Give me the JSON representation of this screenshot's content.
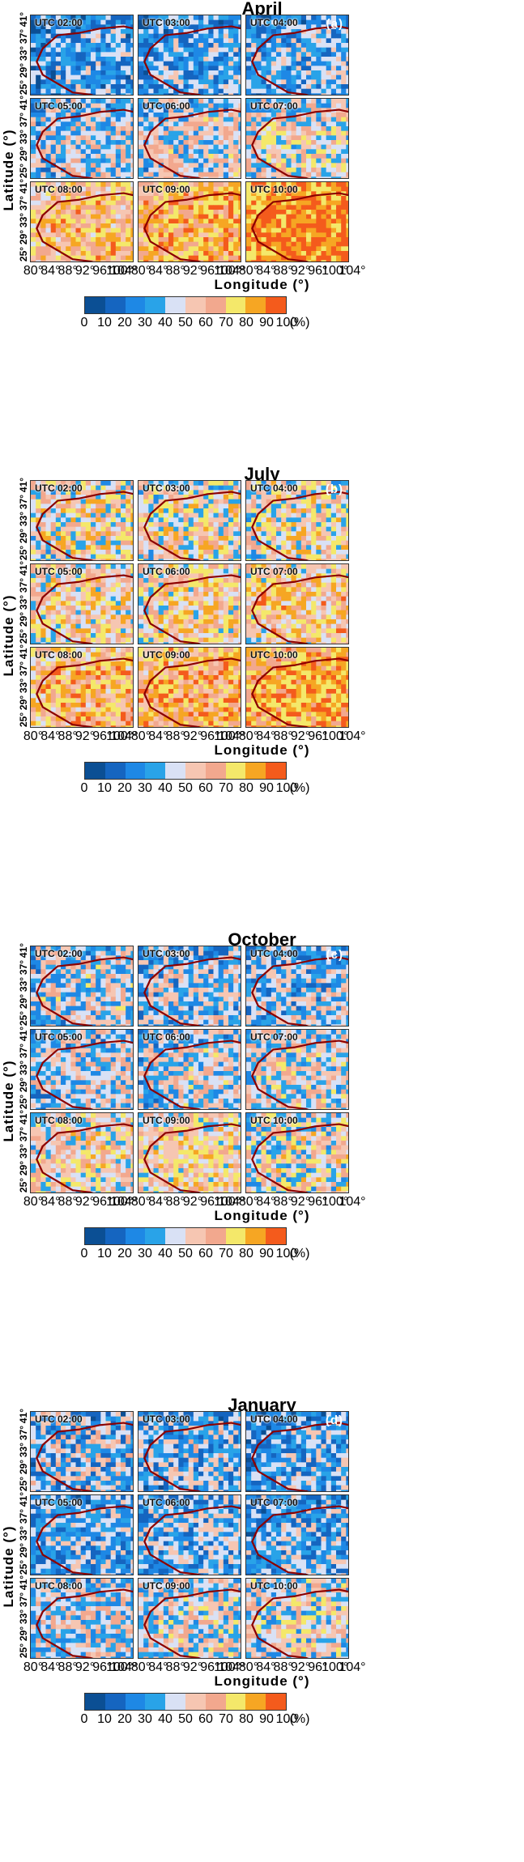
{
  "colors": [
    "#0b4f94",
    "#1565c0",
    "#1e88e5",
    "#29a3e8",
    "#d9e1f5",
    "#f6c6b2",
    "#f2a88e",
    "#f4e86a",
    "#f6a623",
    "#f45b1c"
  ],
  "colorbar": {
    "ticks": [
      "0",
      "10",
      "20",
      "30",
      "40",
      "50",
      "60",
      "70",
      "80",
      "90",
      "100"
    ],
    "unit": "(%)"
  },
  "axes": {
    "ylabel": "Latitude (°)",
    "xlabel": "Longitude (°)",
    "yticks": [
      "41°",
      "37°",
      "33°",
      "29°",
      "25°"
    ],
    "xticks_left": [
      "80°",
      "84°",
      "88°",
      "92°",
      "96°",
      "100°"
    ],
    "xticks_mid": [
      "104°",
      "80°",
      "84°",
      "88°",
      "92°",
      "96°",
      "100°"
    ],
    "xticks_right": [
      "104°",
      "80°",
      "84°",
      "88°",
      "92°",
      "96°",
      "100°",
      "104°"
    ]
  },
  "chart_data": [
    {
      "type": "heatmap",
      "title": "April",
      "panel": "(a)",
      "xlabel": "Longitude (°)",
      "ylabel": "Latitude (°)",
      "xlim": [
        80,
        104
      ],
      "ylim": [
        25,
        41
      ],
      "panels": [
        {
          "label": "UTC 02:00",
          "mean": 25,
          "spread": 22
        },
        {
          "label": "UTC 03:00",
          "mean": 27,
          "spread": 22
        },
        {
          "label": "UTC 04:00",
          "mean": 30,
          "spread": 22
        },
        {
          "label": "UTC 05:00",
          "mean": 38,
          "spread": 24
        },
        {
          "label": "UTC 06:00",
          "mean": 42,
          "spread": 24
        },
        {
          "label": "UTC 07:00",
          "mean": 46,
          "spread": 24
        },
        {
          "label": "UTC 08:00",
          "mean": 64,
          "spread": 22
        },
        {
          "label": "UTC 09:00",
          "mean": 72,
          "spread": 20
        },
        {
          "label": "UTC 10:00",
          "mean": 84,
          "spread": 14
        }
      ]
    },
    {
      "type": "heatmap",
      "title": "July",
      "panel": "(b)",
      "xlabel": "Longitude (°)",
      "ylabel": "Latitude (°)",
      "xlim": [
        80,
        104
      ],
      "ylim": [
        25,
        41
      ],
      "panels": [
        {
          "label": "UTC 02:00",
          "mean": 55,
          "spread": 28
        },
        {
          "label": "UTC 03:00",
          "mean": 52,
          "spread": 28
        },
        {
          "label": "UTC 04:00",
          "mean": 53,
          "spread": 28
        },
        {
          "label": "UTC 05:00",
          "mean": 56,
          "spread": 26
        },
        {
          "label": "UTC 06:00",
          "mean": 58,
          "spread": 26
        },
        {
          "label": "UTC 07:00",
          "mean": 60,
          "spread": 26
        },
        {
          "label": "UTC 08:00",
          "mean": 66,
          "spread": 24
        },
        {
          "label": "UTC 09:00",
          "mean": 70,
          "spread": 22
        },
        {
          "label": "UTC 10:00",
          "mean": 78,
          "spread": 18
        }
      ]
    },
    {
      "type": "heatmap",
      "title": "October",
      "panel": "(c)",
      "xlabel": "Longitude (°)",
      "ylabel": "Latitude (°)",
      "xlim": [
        80,
        104
      ],
      "ylim": [
        25,
        41
      ],
      "panels": [
        {
          "label": "UTC 02:00",
          "mean": 40,
          "spread": 26
        },
        {
          "label": "UTC 03:00",
          "mean": 35,
          "spread": 24
        },
        {
          "label": "UTC 04:00",
          "mean": 34,
          "spread": 24
        },
        {
          "label": "UTC 05:00",
          "mean": 40,
          "spread": 24
        },
        {
          "label": "UTC 06:00",
          "mean": 42,
          "spread": 24
        },
        {
          "label": "UTC 07:00",
          "mean": 44,
          "spread": 24
        },
        {
          "label": "UTC 08:00",
          "mean": 52,
          "spread": 24
        },
        {
          "label": "UTC 09:00",
          "mean": 56,
          "spread": 24
        },
        {
          "label": "UTC 10:00",
          "mean": 48,
          "spread": 28
        }
      ]
    },
    {
      "type": "heatmap",
      "title": "January",
      "panel": "(d)",
      "xlabel": "Longitude (°)",
      "ylabel": "Latitude (°)",
      "xlim": [
        80,
        104
      ],
      "ylim": [
        25,
        41
      ],
      "panels": [
        {
          "label": "UTC 02:00",
          "mean": 34,
          "spread": 28
        },
        {
          "label": "UTC 03:00",
          "mean": 32,
          "spread": 24
        },
        {
          "label": "UTC 04:00",
          "mean": 28,
          "spread": 22
        },
        {
          "label": "UTC 05:00",
          "mean": 30,
          "spread": 22
        },
        {
          "label": "UTC 06:00",
          "mean": 32,
          "spread": 22
        },
        {
          "label": "UTC 07:00",
          "mean": 30,
          "spread": 22
        },
        {
          "label": "UTC 08:00",
          "mean": 40,
          "spread": 24
        },
        {
          "label": "UTC 09:00",
          "mean": 44,
          "spread": 24
        },
        {
          "label": "UTC 10:00",
          "mean": 46,
          "spread": 26
        }
      ]
    }
  ]
}
